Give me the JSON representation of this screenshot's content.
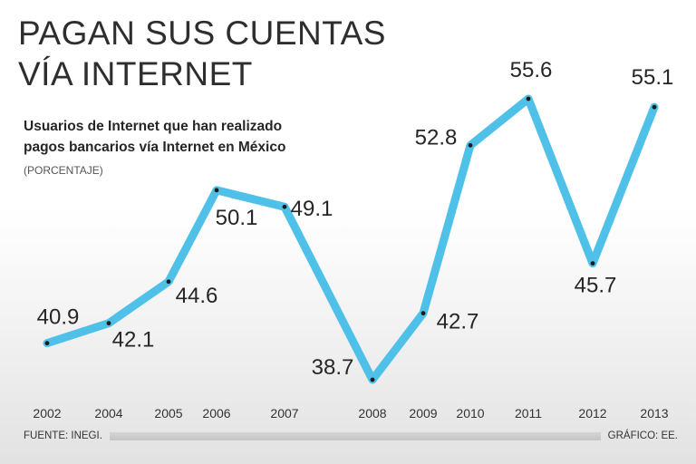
{
  "header": {
    "title_line1": "PAGAN SUS CUENTAS",
    "title_line2": "VÍA INTERNET",
    "subtitle_line1": "Usuarios de Internet que han realizado",
    "subtitle_line2": "pagos bancarios vía Internet en México",
    "unit": "(PORCENTAJE)"
  },
  "footer": {
    "source": "FUENTE: INEGI.",
    "credit": "GRÁFICO: EE."
  },
  "chart_data": {
    "type": "line",
    "title": "Usuarios de Internet que han realizado pagos bancarios vía Internet en México",
    "ylabel": "(PORCENTAJE)",
    "xlabel": "",
    "categories": [
      "2002",
      "2004",
      "2005",
      "2006",
      "2007",
      "2008",
      "2009",
      "2010",
      "2011",
      "2012",
      "2013"
    ],
    "values": [
      40.9,
      42.1,
      44.6,
      50.1,
      49.1,
      38.7,
      42.7,
      52.8,
      55.6,
      45.7,
      55.1
    ],
    "ylim": [
      37,
      58
    ],
    "grid": false,
    "legend": "none",
    "line_color": "#4fc1e9",
    "marker_color": "#1a1a1a"
  }
}
